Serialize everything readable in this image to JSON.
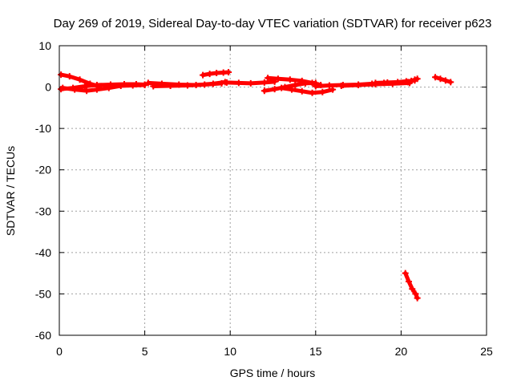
{
  "chart_data": {
    "type": "scatter",
    "title": "Day 269 of 2019, Sidereal Day-to-day VTEC variation (SDTVAR) for receiver p623",
    "xlabel": "GPS time / hours",
    "ylabel": "SDTVAR / TECUs",
    "xlim": [
      0,
      25
    ],
    "ylim": [
      -60,
      10
    ],
    "xticks": [
      0,
      5,
      10,
      15,
      20,
      25
    ],
    "yticks": [
      10,
      0,
      -10,
      -20,
      -30,
      -40,
      -50,
      -60
    ],
    "grid": true,
    "legend": "none",
    "marker_color": "#ff0000",
    "series": [
      {
        "x": [
          0.1,
          0.6,
          1.2,
          1.8,
          2.3
        ],
        "y": [
          3.0,
          2.6,
          1.8,
          0.8,
          0.2
        ]
      },
      {
        "x": [
          0.1,
          0.8,
          1.5,
          2.2,
          3.0,
          3.8,
          4.5,
          5.0
        ],
        "y": [
          -0.5,
          -0.2,
          0.2,
          0.5,
          0.6,
          0.7,
          0.7,
          0.6
        ]
      },
      {
        "x": [
          0.2,
          0.9,
          1.6,
          2.2,
          2.9,
          3.6,
          4.3,
          5.0
        ],
        "y": [
          -0.2,
          -0.6,
          -0.9,
          -0.6,
          -0.2,
          0.3,
          0.4,
          0.5
        ]
      },
      {
        "x": [
          5.2,
          6.0,
          7.0,
          8.0,
          9.0,
          9.7
        ],
        "y": [
          1.0,
          0.8,
          0.6,
          0.5,
          0.8,
          1.2
        ]
      },
      {
        "x": [
          5.5,
          6.5,
          7.5,
          8.5,
          9.5
        ],
        "y": [
          0.2,
          0.3,
          0.4,
          0.6,
          0.9
        ]
      },
      {
        "x": [
          8.4,
          8.8,
          9.2,
          9.6,
          9.9
        ],
        "y": [
          2.9,
          3.2,
          3.4,
          3.5,
          3.6
        ]
      },
      {
        "x": [
          9.8,
          10.5,
          11.2,
          12.0,
          12.6
        ],
        "y": [
          1.1,
          1.0,
          0.9,
          1.1,
          1.3
        ]
      },
      {
        "x": [
          12.2,
          12.8,
          13.5,
          14.2,
          14.8,
          15.3
        ],
        "y": [
          2.2,
          2.0,
          1.8,
          1.5,
          1.0,
          0.5
        ]
      },
      {
        "x": [
          12.0,
          12.6,
          13.2,
          13.8,
          14.4,
          15.0
        ],
        "y": [
          -0.9,
          -0.5,
          0.0,
          0.5,
          0.9,
          1.0
        ]
      },
      {
        "x": [
          13.0,
          13.6,
          14.2,
          14.8,
          15.4,
          16.0
        ],
        "y": [
          -0.2,
          -0.6,
          -1.0,
          -1.4,
          -1.2,
          -0.6
        ]
      },
      {
        "x": [
          15.0,
          15.8,
          16.6,
          17.5,
          18.3,
          19.0
        ],
        "y": [
          0.2,
          0.4,
          0.5,
          0.6,
          0.8,
          1.0
        ]
      },
      {
        "x": [
          18.5,
          19.2,
          19.8,
          20.3,
          20.8
        ],
        "y": [
          1.0,
          1.1,
          1.2,
          1.4,
          1.6
        ]
      },
      {
        "x": [
          16.5,
          17.5,
          18.5,
          19.5,
          20.5
        ],
        "y": [
          0.3,
          0.5,
          0.7,
          0.8,
          1.0
        ]
      },
      {
        "x": [
          20.4,
          20.6,
          20.8,
          20.95
        ],
        "y": [
          1.2,
          1.5,
          1.8,
          2.0
        ]
      },
      {
        "x": [
          22.0,
          22.3,
          22.6,
          22.9
        ],
        "y": [
          2.4,
          2.0,
          1.6,
          1.2
        ]
      },
      {
        "x": [
          20.25,
          20.45,
          20.65,
          20.85,
          20.95
        ],
        "y": [
          -45.0,
          -47.0,
          -48.8,
          -50.0,
          -51.0
        ]
      }
    ]
  }
}
